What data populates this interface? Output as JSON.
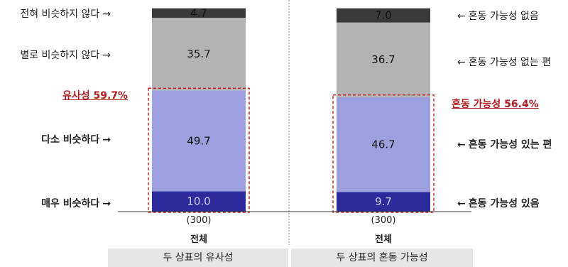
{
  "chart_data": {
    "type": "bar",
    "stacked": true,
    "orientation": "vertical",
    "columns": [
      {
        "sample": "(300)",
        "group": "전체",
        "footer": "두 상표의 유사성",
        "highlight": "유사성 59.7%",
        "segments": [
          {
            "label": "매우 비슷하다",
            "value": 10.0,
            "value_text": "10.0",
            "color": "#2b2b9c",
            "text_color": "#d0d0f0",
            "bold": true
          },
          {
            "label": "다소 비슷하다",
            "value": 49.7,
            "value_text": "49.7",
            "color": "#9d9fde",
            "text_color": "#111111",
            "bold": true
          },
          {
            "label": "별로 비슷하지 않다",
            "value": 35.7,
            "value_text": "35.7",
            "color": "#b3b3b3",
            "text_color": "#111111",
            "bold": false
          },
          {
            "label": "전혀 비슷하지 않다",
            "value": 4.7,
            "value_text": "4.7",
            "color": "#3a3a3a",
            "text_color": "#111111",
            "bold": false
          }
        ]
      },
      {
        "sample": "(300)",
        "group": "전체",
        "footer": "두 상표의 혼동 가능성",
        "highlight": "혼동 가능성 56.4%",
        "segments": [
          {
            "label": "혼동 가능성 있음",
            "value": 9.7,
            "value_text": "9.7",
            "color": "#2b2b9c",
            "text_color": "#d0d0f0",
            "bold": true
          },
          {
            "label": "혼동 가능성 있는 편",
            "value": 46.7,
            "value_text": "46.7",
            "color": "#9d9fde",
            "text_color": "#111111",
            "bold": true
          },
          {
            "label": "혼동 가능성 없는 편",
            "value": 36.7,
            "value_text": "36.7",
            "color": "#b3b3b3",
            "text_color": "#111111",
            "bold": false
          },
          {
            "label": "혼동 가능성 없음",
            "value": 7.0,
            "value_text": "7.0",
            "color": "#3a3a3a",
            "text_color": "#111111",
            "bold": false
          }
        ]
      }
    ],
    "arrow_right": "→",
    "arrow_left": "←"
  }
}
